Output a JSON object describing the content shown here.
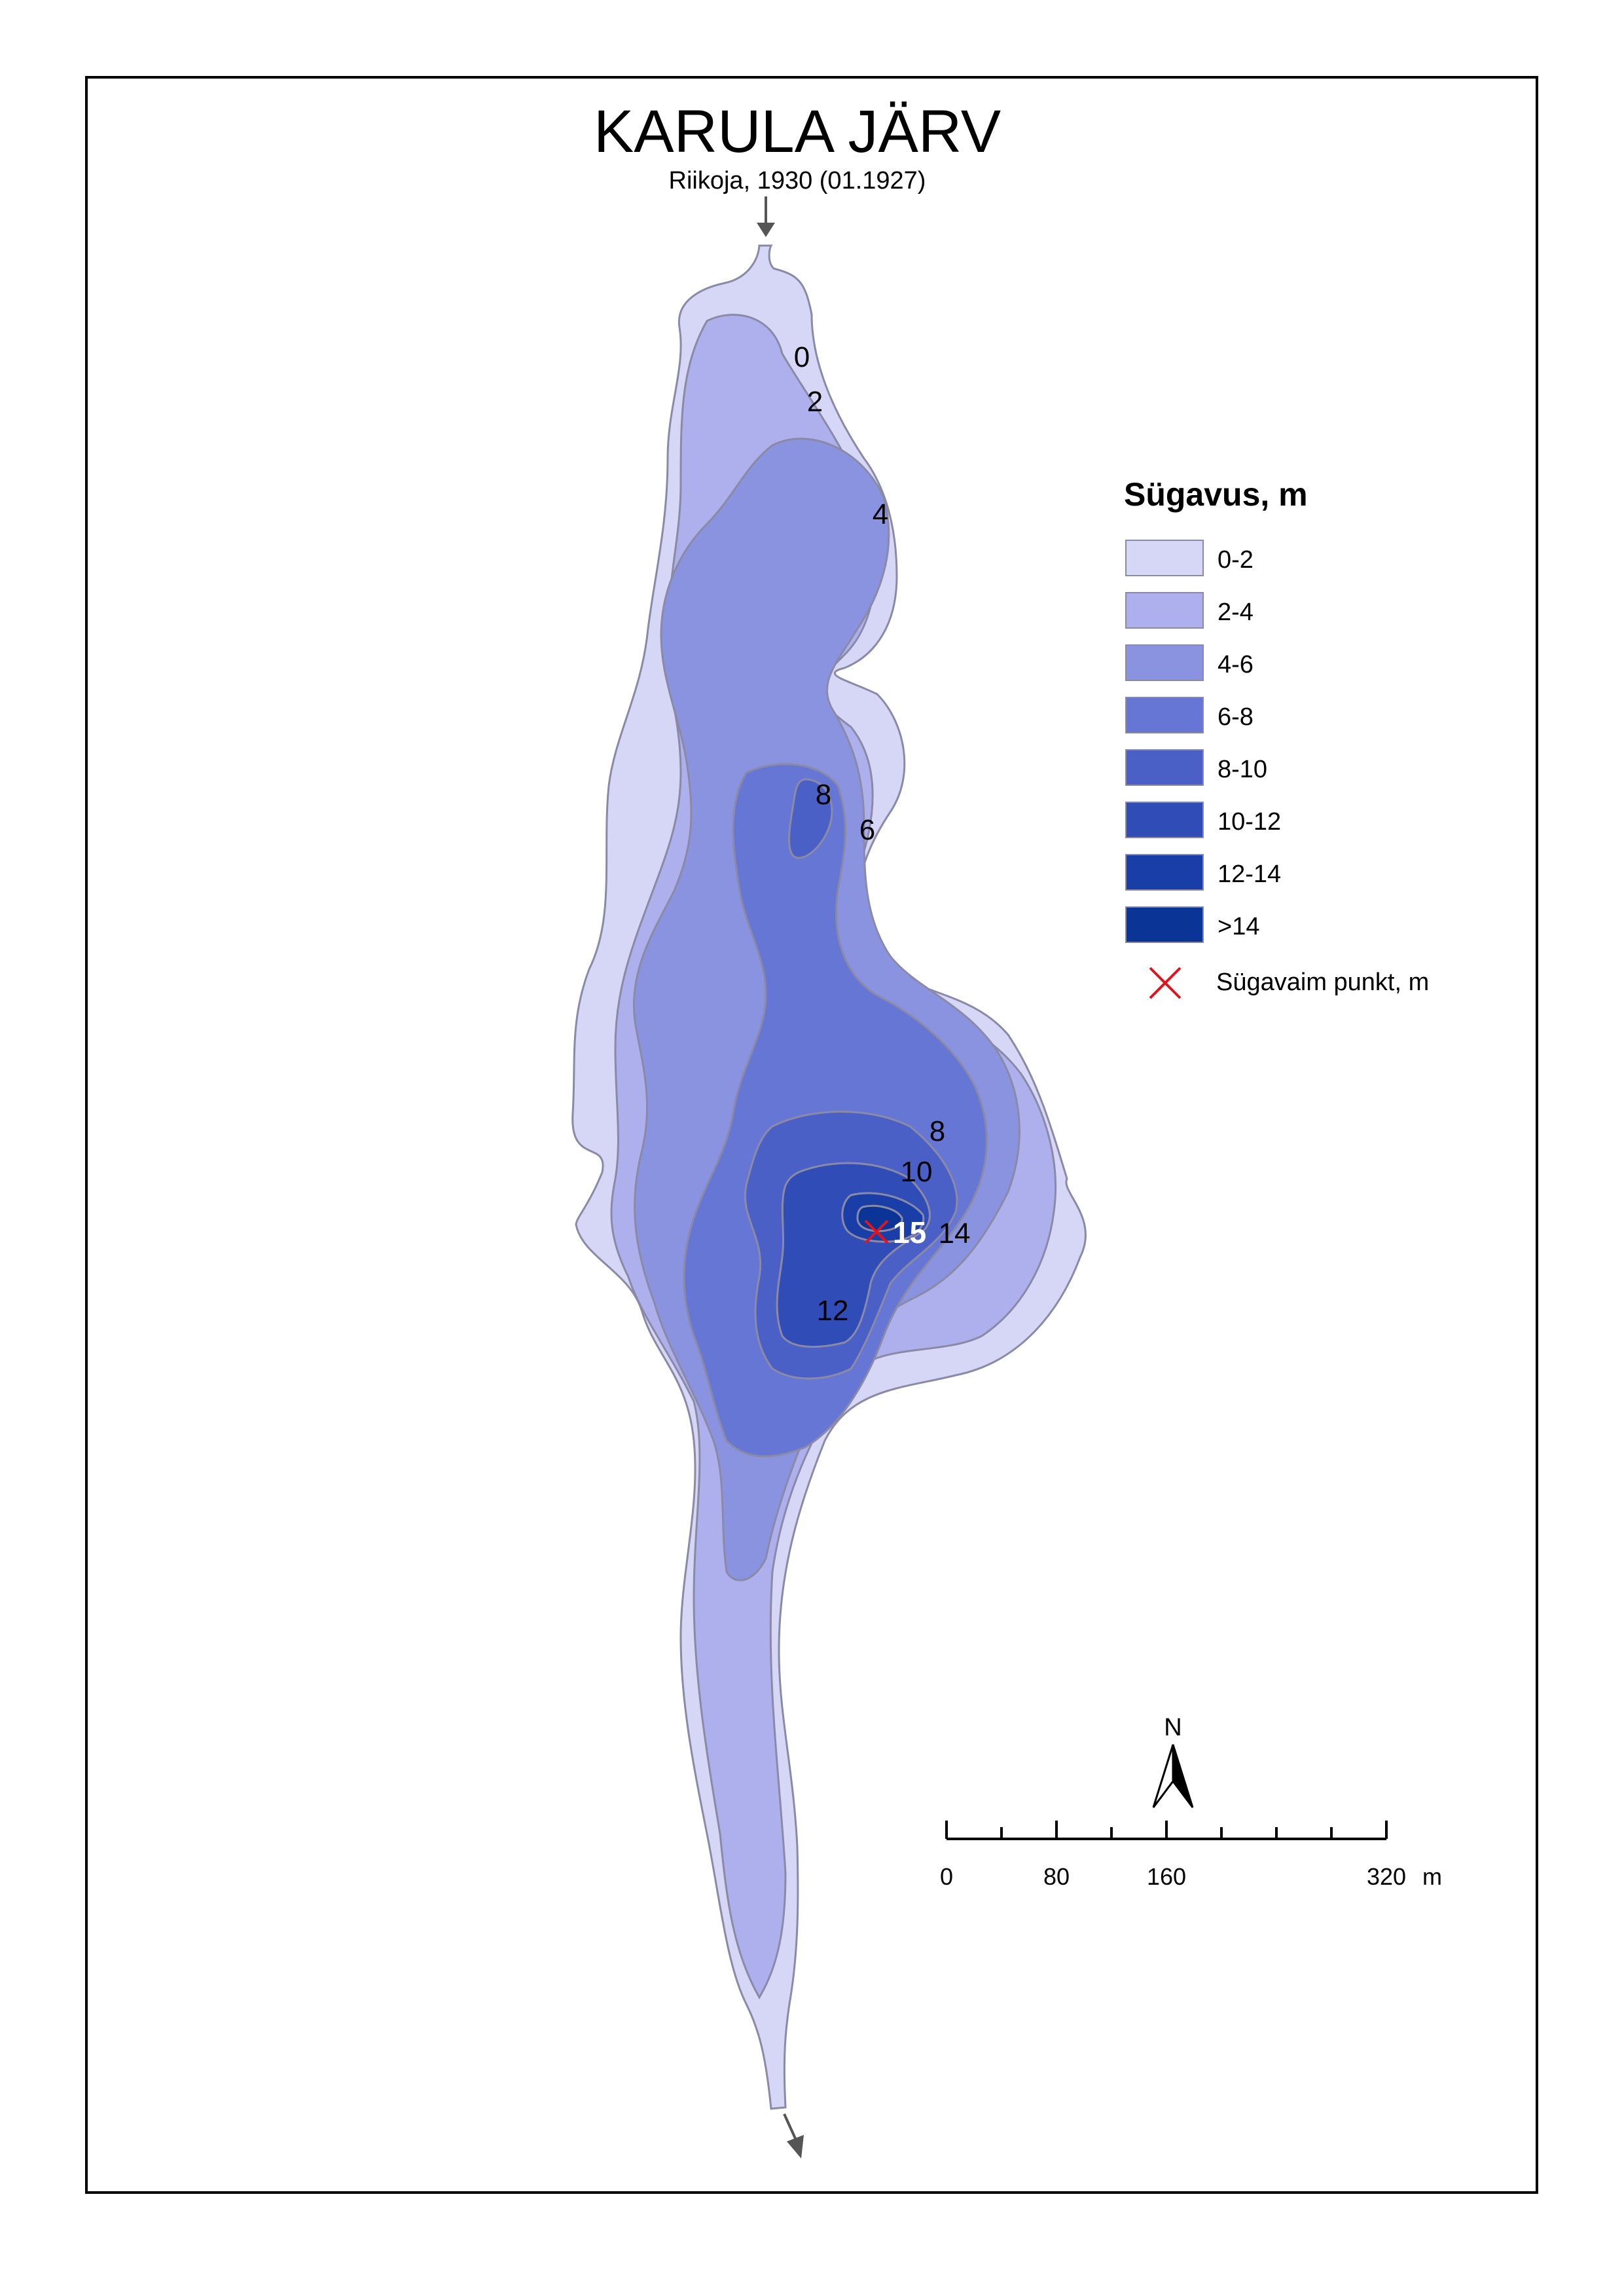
{
  "map": {
    "title": "KARULA JÄRV",
    "subtitle": "Riikoja, 1930 (01.1927)"
  },
  "legend": {
    "title": "Sügavus, m",
    "items": [
      {
        "label": "0-2",
        "color": "#d6d6f7"
      },
      {
        "label": "2-4",
        "color": "#adb0ec"
      },
      {
        "label": "4-6",
        "color": "#8a93e0"
      },
      {
        "label": "6-8",
        "color": "#6676d4"
      },
      {
        "label": "8-10",
        "color": "#4a60c6"
      },
      {
        "label": "10-12",
        "color": "#2f4cb7"
      },
      {
        "label": "12-14",
        "color": "#1a3ea8"
      },
      {
        "label": ">14",
        "color": "#0a3596"
      }
    ],
    "deepest_point_label": "Sügavaim punkt, m",
    "deepest_point_color": "#e0141e"
  },
  "contour_labels": [
    "0",
    "2",
    "4",
    "8",
    "6",
    "8",
    "10",
    "14",
    "12"
  ],
  "deepest_value": "15",
  "north_label": "N",
  "scale_bar": {
    "labels": [
      "0",
      "80",
      "160",
      "320",
      "m"
    ]
  }
}
